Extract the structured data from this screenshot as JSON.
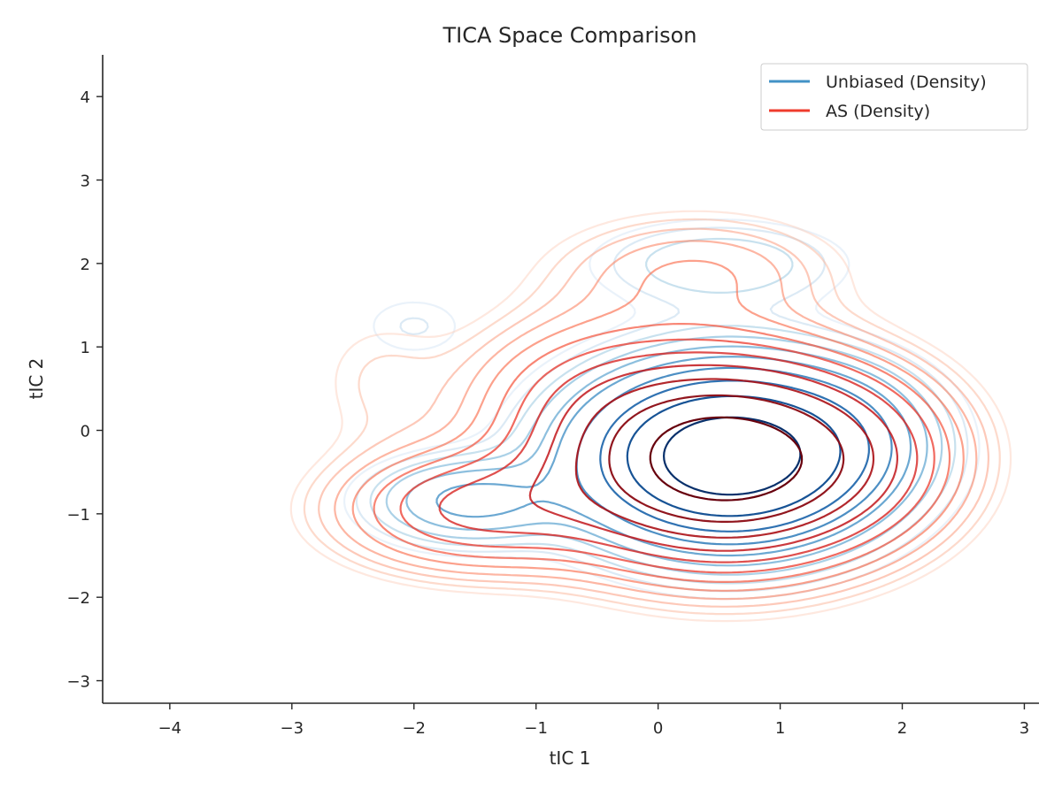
{
  "chart_data": {
    "type": "contour",
    "title": "TICA Space Comparison",
    "xlabel": "tIC 1",
    "ylabel": "tIC 2",
    "xlim": [
      -4.55,
      3.12
    ],
    "ylim": [
      -3.27,
      4.5
    ],
    "xticks": [
      -4,
      -3,
      -2,
      -1,
      0,
      1,
      2,
      3
    ],
    "yticks": [
      -3,
      -2,
      -1,
      0,
      1,
      2,
      3,
      4
    ],
    "xtick_labels": [
      "−4",
      "−3",
      "−2",
      "−1",
      "0",
      "1",
      "2",
      "3"
    ],
    "ytick_labels": [
      "−3",
      "−2",
      "−1",
      "0",
      "1",
      "2",
      "3",
      "4"
    ],
    "grid": false,
    "legend_position": "top-right",
    "series": [
      {
        "name": "Unbiased (Density)",
        "legend_color": "#4292c6",
        "colormap": "Blues",
        "levels": 10,
        "components": [
          {
            "mx": 0.58,
            "my": -0.31,
            "sx": 0.72,
            "sy": 0.62,
            "w": 1.0
          },
          {
            "mx": -1.55,
            "my": -0.85,
            "sx": 0.5,
            "sy": 0.32,
            "w": 0.18
          },
          {
            "mx": -2.0,
            "my": 1.25,
            "sx": 0.35,
            "sy": 0.3,
            "w": 0.035
          },
          {
            "mx": 0.5,
            "my": 2.0,
            "sx": 0.7,
            "sy": 0.35,
            "w": 0.07
          },
          {
            "mx": 1.6,
            "my": 0.0,
            "sx": 0.45,
            "sy": 0.5,
            "w": 0.08
          }
        ]
      },
      {
        "name": "AS (Density)",
        "legend_color": "#ef3b2c",
        "colormap": "Reds",
        "levels": 12,
        "components": [
          {
            "mx": 0.55,
            "my": -0.35,
            "sx": 0.82,
            "sy": 0.7,
            "w": 1.0
          },
          {
            "mx": -1.5,
            "my": -0.95,
            "sx": 0.7,
            "sy": 0.45,
            "w": 0.22
          },
          {
            "mx": -0.6,
            "my": 0.5,
            "sx": 0.65,
            "sy": 0.6,
            "w": 0.1
          },
          {
            "mx": 0.3,
            "my": 1.9,
            "sx": 0.75,
            "sy": 0.45,
            "w": 0.08
          },
          {
            "mx": -2.3,
            "my": 0.6,
            "sx": 0.4,
            "sy": 0.6,
            "w": 0.03
          },
          {
            "mx": 1.7,
            "my": -0.3,
            "sx": 0.5,
            "sy": 0.6,
            "w": 0.08
          }
        ]
      }
    ]
  }
}
